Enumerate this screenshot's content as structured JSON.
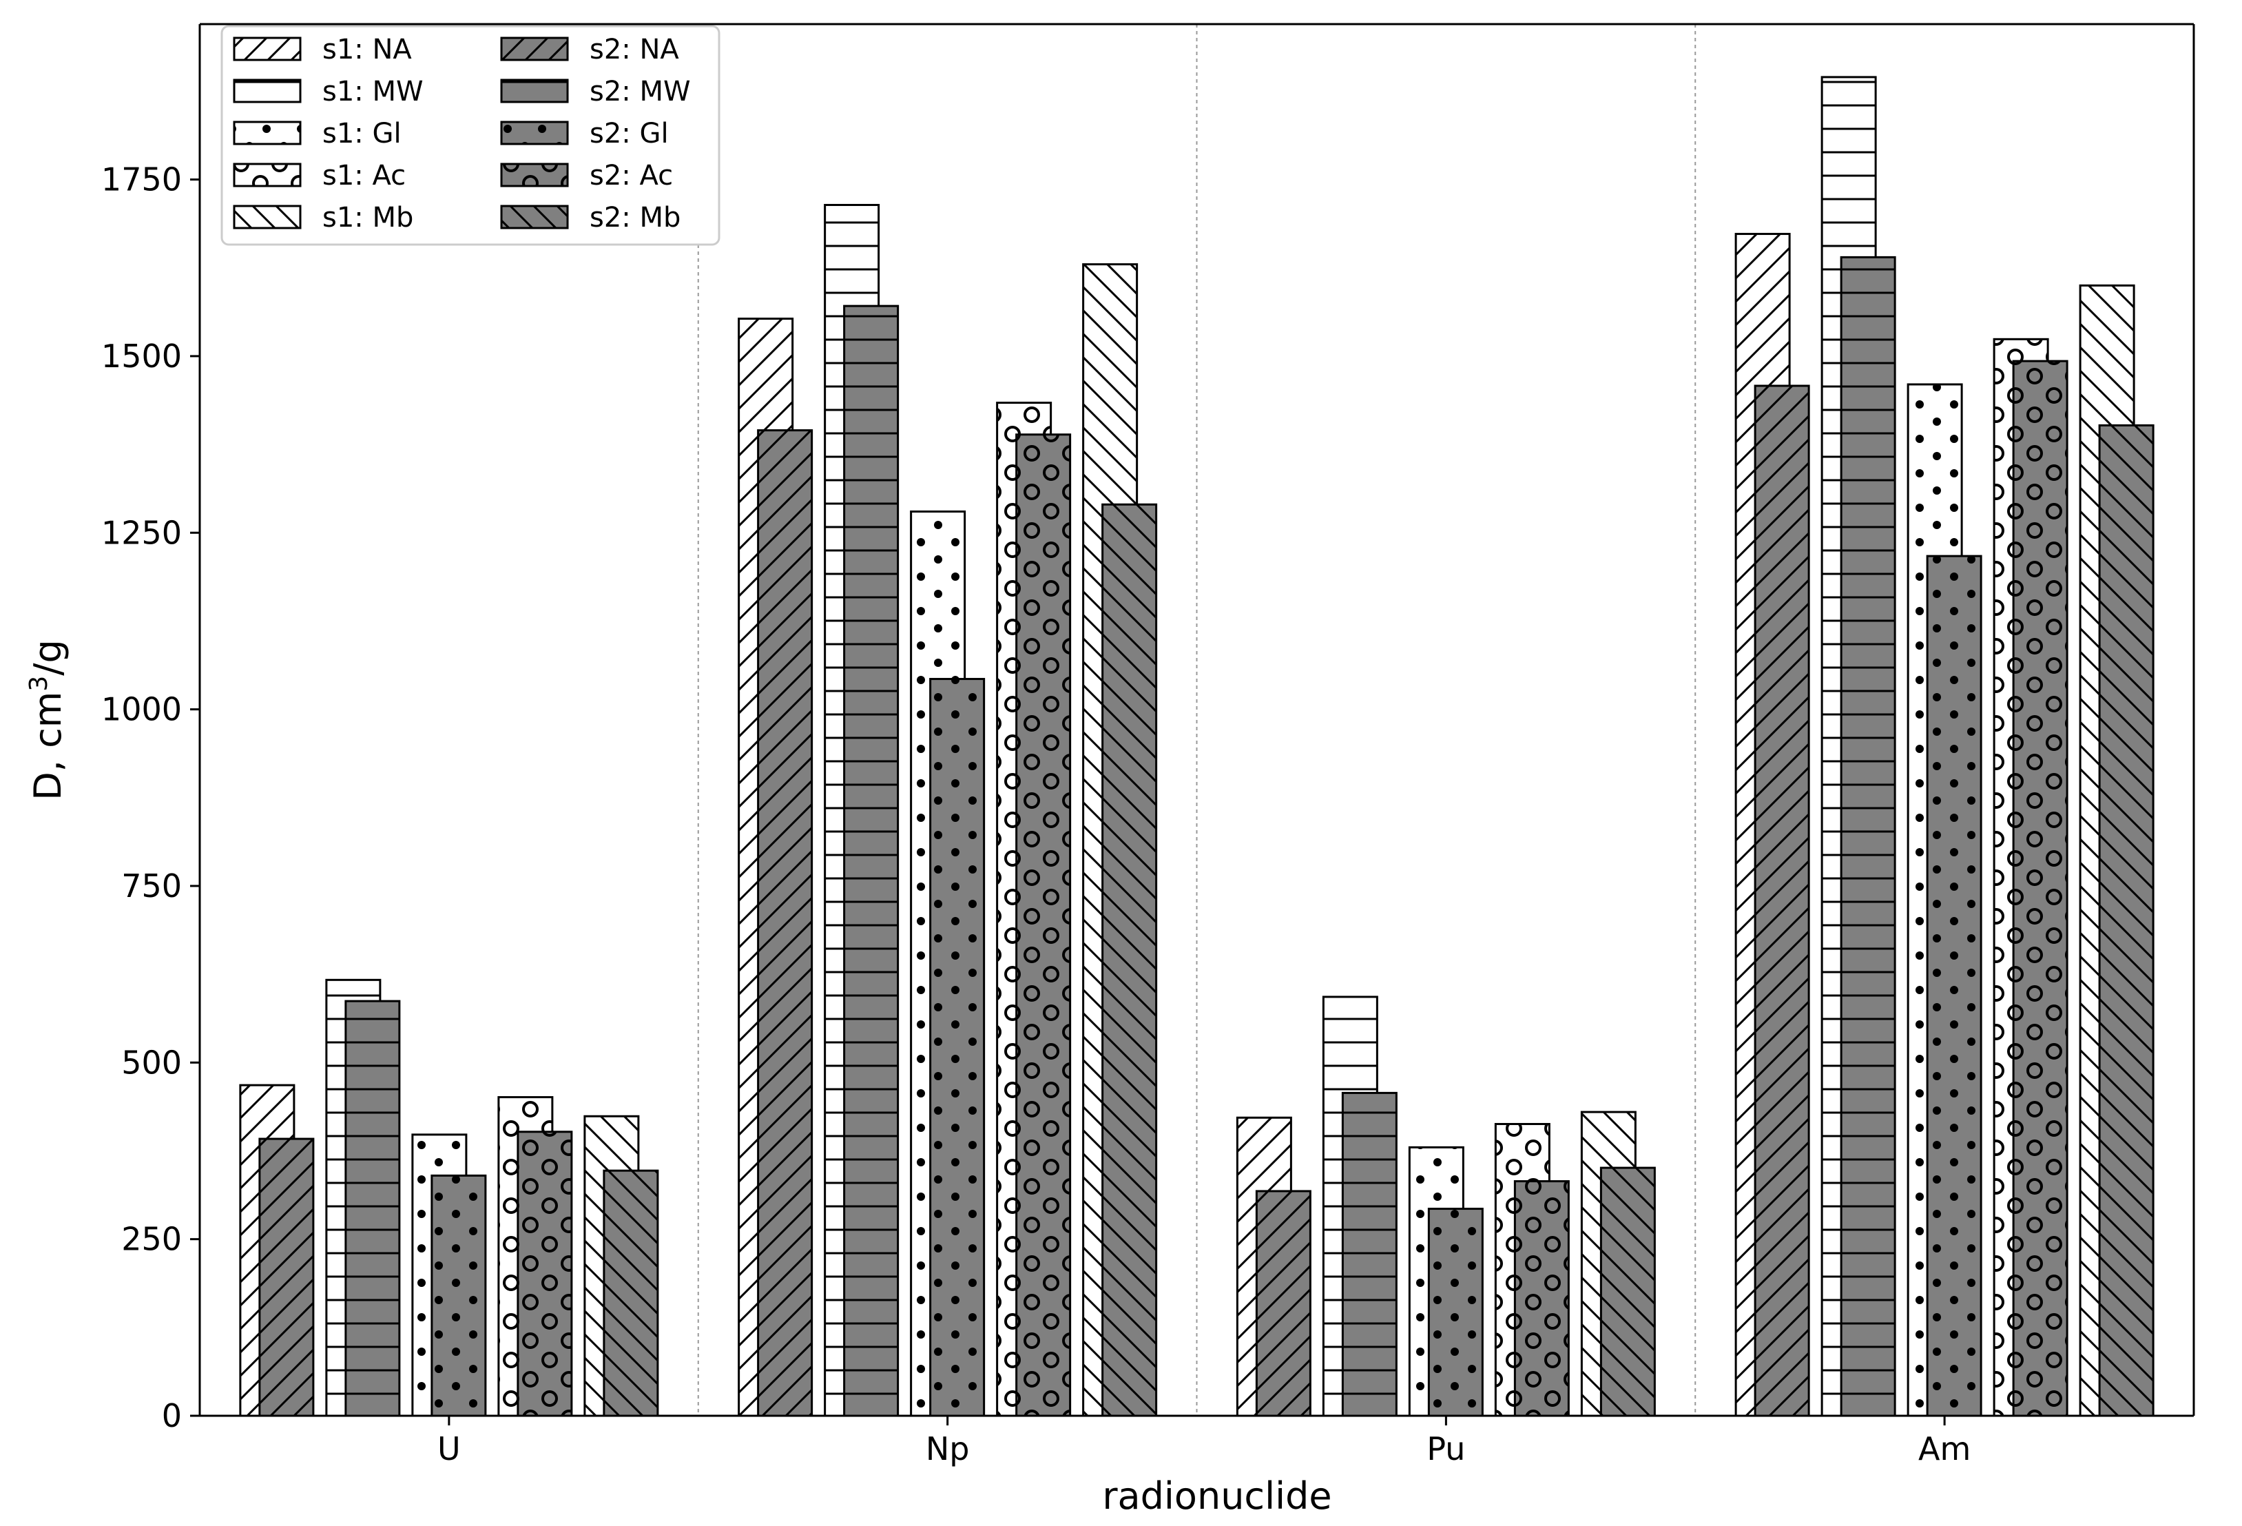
{
  "chart_data": {
    "type": "bar",
    "xlabel": "radionuclide",
    "ylabel_prefix": "D, cm",
    "ylabel_sup": "3",
    "ylabel_suffix": "/g",
    "categories": [
      "U",
      "Np",
      "Pu",
      "Am"
    ],
    "ylim": [
      0,
      1970
    ],
    "yticks": [
      0,
      250,
      500,
      750,
      1000,
      1250,
      1500,
      1750
    ],
    "legend_location": "upper-left",
    "bar_order": [
      "NA",
      "MW",
      "Gl",
      "Ac",
      "Mb"
    ],
    "series": [
      {
        "name": "s1: NA",
        "sample": "s1",
        "medium": "NA",
        "pattern": "diag-fwd",
        "values": [
          468,
          1553,
          422,
          1673
        ]
      },
      {
        "name": "s1: MW",
        "sample": "s1",
        "medium": "MW",
        "pattern": "horiz",
        "values": [
          617,
          1714,
          593,
          1895
        ]
      },
      {
        "name": "s1: Gl",
        "sample": "s1",
        "medium": "Gl",
        "pattern": "dots",
        "values": [
          398,
          1280,
          380,
          1460
        ]
      },
      {
        "name": "s1: Ac",
        "sample": "s1",
        "medium": "Ac",
        "pattern": "circles",
        "values": [
          451,
          1434,
          413,
          1524
        ]
      },
      {
        "name": "s1: Mb",
        "sample": "s1",
        "medium": "Mb",
        "pattern": "diag-back",
        "values": [
          424,
          1630,
          430,
          1600
        ]
      },
      {
        "name": "s2: NA",
        "sample": "s2",
        "medium": "NA",
        "pattern": "diag-fwd",
        "values": [
          392,
          1395,
          318,
          1458
        ]
      },
      {
        "name": "s2: MW",
        "sample": "s2",
        "medium": "MW",
        "pattern": "horiz",
        "values": [
          587,
          1571,
          457,
          1640
        ]
      },
      {
        "name": "s2: Gl",
        "sample": "s2",
        "medium": "Gl",
        "pattern": "dots",
        "values": [
          340,
          1043,
          293,
          1217
        ]
      },
      {
        "name": "s2: Ac",
        "sample": "s2",
        "medium": "Ac",
        "pattern": "circles",
        "values": [
          402,
          1389,
          332,
          1493
        ]
      },
      {
        "name": "s2: Mb",
        "sample": "s2",
        "medium": "Mb",
        "pattern": "diag-back",
        "values": [
          347,
          1290,
          351,
          1402
        ]
      }
    ]
  },
  "colors": {
    "s1_fill": "#ffffff",
    "s2_fill": "#808080",
    "edge": "#000000",
    "separator": "#999999"
  }
}
